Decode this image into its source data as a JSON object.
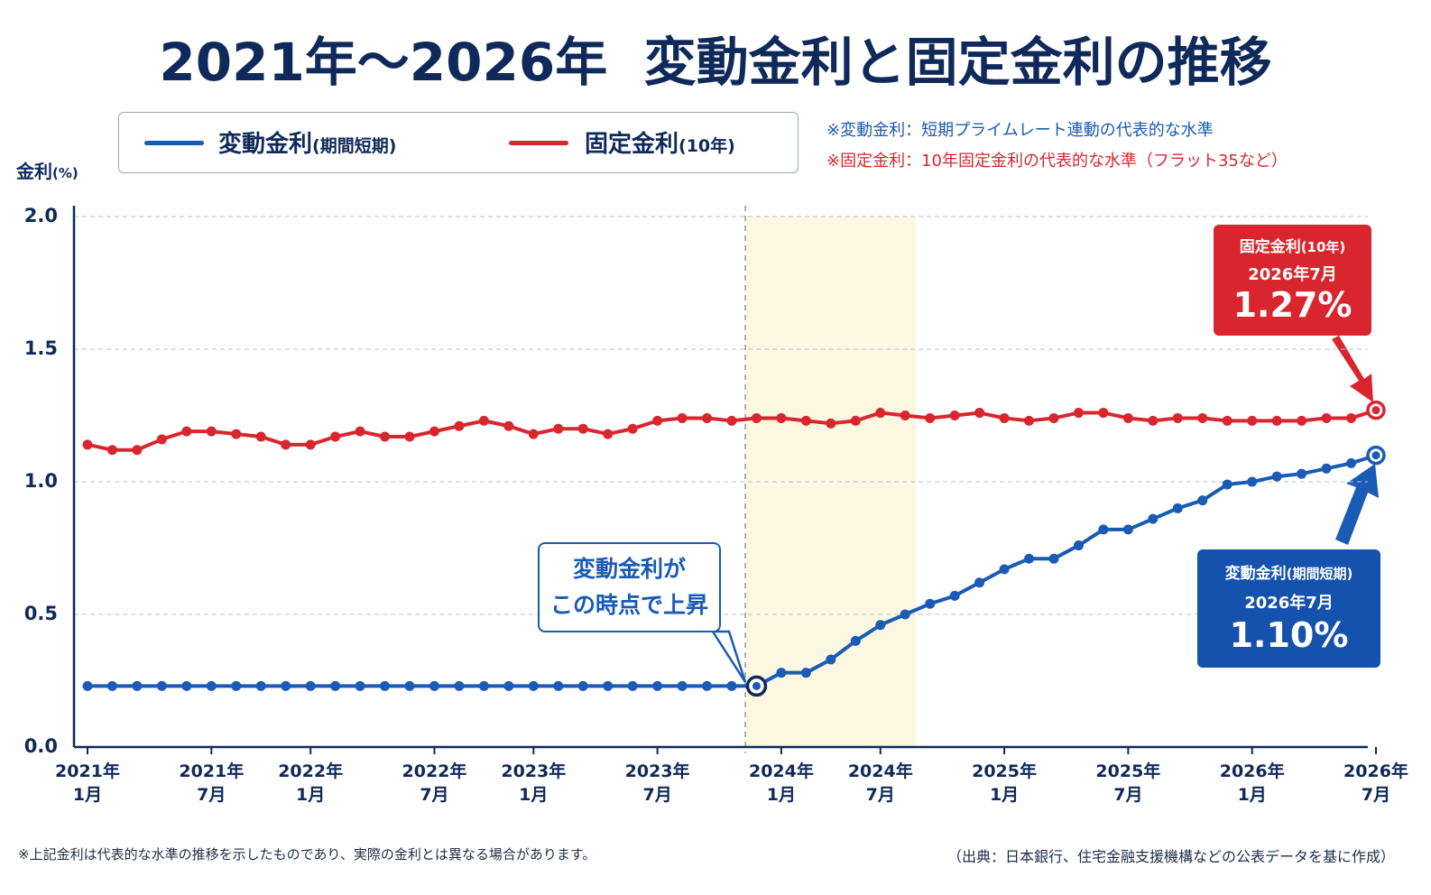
{
  "chart_data": {
    "type": "line",
    "title": "2021年～2026年  変動金利と固定金利の推移",
    "ylabel": "金利",
    "ylabel_unit": "(%)",
    "notes": [
      "※変動金利：短期プライムレート連動の代表的な水準",
      "※固定金利：10年固定金利の代表的な水準（フラット35など）"
    ],
    "annotation": "変動金利が\nこの時点で上昇",
    "footnote": "※上記金利は代表的な水準の推移を示したものであり、実際の金利とは異なる場合があります。",
    "source": "（出典：日本銀行、住宅金融支援機構などの公表データを基に作成）",
    "grid": true,
    "ylim": [
      0,
      2
    ],
    "yticks": [
      {
        "value": 0,
        "label": "0.0"
      },
      0.5,
      {
        "value": 1,
        "label": "1.0"
      },
      1.5,
      {
        "value": 2,
        "label": "2.0"
      }
    ],
    "categories": [
      "2021年\n1月",
      null,
      null,
      null,
      null,
      "2021年\n7月",
      null,
      null,
      null,
      "2022年\n1月",
      null,
      null,
      null,
      null,
      "2022年\n7月",
      null,
      null,
      null,
      "2023年\n1月",
      null,
      null,
      null,
      null,
      "2023年\n7月",
      null,
      null,
      null,
      null,
      "2024年\n1月",
      null,
      null,
      null,
      "2024年\n7月",
      null,
      null,
      null,
      null,
      "2025年\n1月",
      null,
      null,
      null,
      null,
      "2025年\n7月",
      null,
      null,
      null,
      null,
      "2026年\n1月",
      null,
      null,
      null,
      null,
      "2026年\n7月"
    ],
    "series": [
      {
        "name": "変動金利",
        "name_note": "(期間短期)",
        "color": "#1a5bb5",
        "callout_date": "2026年7月",
        "values": [
          0.23,
          0.23,
          0.23,
          0.23,
          0.23,
          0.23,
          0.23,
          0.23,
          0.23,
          0.23,
          0.23,
          0.23,
          0.23,
          0.23,
          0.23,
          0.23,
          0.23,
          0.23,
          0.23,
          0.23,
          0.23,
          0.23,
          0.23,
          0.23,
          0.23,
          0.23,
          0.23,
          0.23,
          0.28,
          0.28,
          0.33,
          0.4,
          0.46,
          0.5,
          0.54,
          0.57,
          0.62,
          0.67,
          0.71,
          0.71,
          0.76,
          0.82,
          0.82,
          0.86,
          0.9,
          0.93,
          0.99,
          1.0,
          1.02,
          1.03,
          1.05,
          1.07,
          1.1
        ],
        "value_labels": [
          null,
          null,
          null,
          null,
          null,
          null,
          null,
          null,
          null,
          null,
          null,
          null,
          null,
          null,
          null,
          null,
          null,
          null,
          null,
          null,
          null,
          null,
          null,
          null,
          null,
          null,
          null,
          null,
          null,
          null,
          null,
          null,
          null,
          null,
          null,
          null,
          null,
          null,
          null,
          null,
          null,
          null,
          null,
          null,
          null,
          null,
          null,
          null,
          null,
          null,
          null,
          null,
          "1.10%"
        ]
      },
      {
        "name": "固定金利",
        "name_note": "(10年)",
        "color": "#d9262e",
        "callout_date": "2026年7月",
        "values": [
          1.14,
          1.12,
          1.12,
          1.16,
          1.19,
          1.19,
          1.18,
          1.17,
          1.14,
          1.14,
          1.17,
          1.19,
          1.17,
          1.17,
          1.19,
          1.21,
          1.23,
          1.21,
          1.18,
          1.2,
          1.2,
          1.18,
          1.2,
          1.23,
          1.24,
          1.24,
          1.23,
          1.24,
          1.24,
          1.23,
          1.22,
          1.23,
          1.26,
          1.25,
          1.24,
          1.25,
          1.26,
          1.24,
          1.23,
          1.24,
          1.26,
          1.26,
          1.24,
          1.23,
          1.24,
          1.24,
          1.23,
          1.23,
          1.23,
          1.23,
          1.24,
          1.24,
          1.27
        ],
        "value_labels": [
          null,
          null,
          null,
          null,
          null,
          null,
          null,
          null,
          null,
          null,
          null,
          null,
          null,
          null,
          null,
          null,
          null,
          null,
          null,
          null,
          null,
          null,
          null,
          null,
          null,
          null,
          null,
          null,
          null,
          null,
          null,
          null,
          null,
          null,
          null,
          null,
          null,
          null,
          null,
          null,
          null,
          null,
          null,
          null,
          null,
          null,
          null,
          null,
          null,
          null,
          null,
          null,
          "1.27%"
        ]
      }
    ]
  }
}
